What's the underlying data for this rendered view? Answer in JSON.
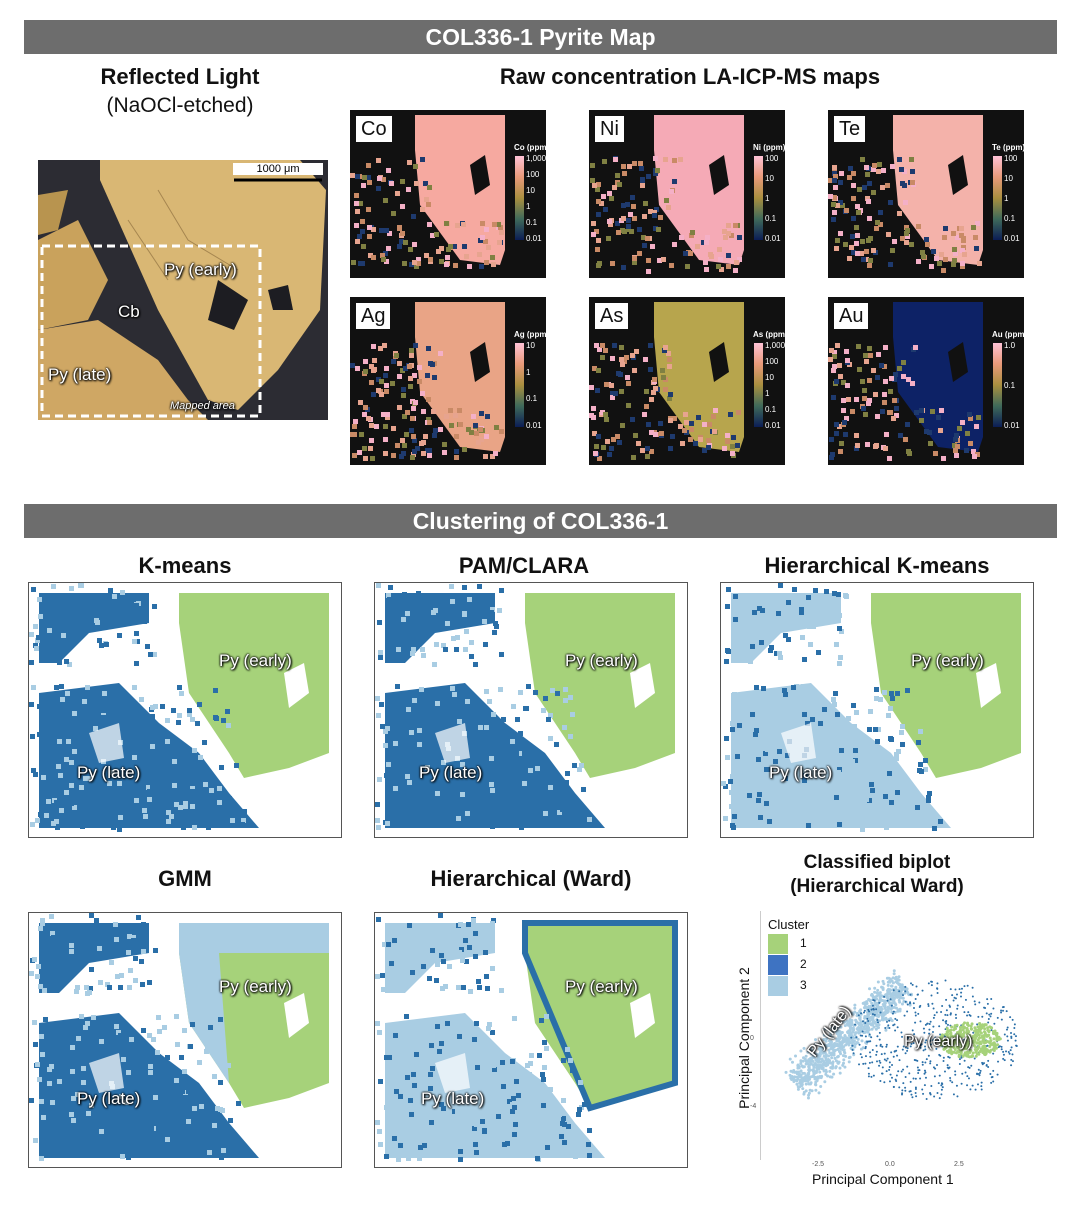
{
  "banners": {
    "top": "COL336-1 Pyrite Map",
    "bottom": "Clustering of COL336-1"
  },
  "reflected": {
    "title": "Reflected Light",
    "subtitle": "(NaOCl-etched)",
    "scale": "1000 μm",
    "label_early": "Py (early)",
    "label_cb": "Cb",
    "label_late": "Py (late)",
    "mapped": "Mapped area"
  },
  "raw_title": "Raw concentration LA-ICP-MS maps",
  "elements": [
    {
      "sym": "Co",
      "unit": "Co (ppm)",
      "ticks": [
        "1,000",
        "100",
        "10",
        "1",
        "0.1",
        "0.01"
      ]
    },
    {
      "sym": "Ni",
      "unit": "Ni (ppm)",
      "ticks": [
        "100",
        "10",
        "1",
        "0.1",
        "0.01"
      ]
    },
    {
      "sym": "Te",
      "unit": "Te (ppm)",
      "ticks": [
        "100",
        "10",
        "1",
        "0.1",
        "0.01"
      ]
    },
    {
      "sym": "Ag",
      "unit": "Ag (ppm)",
      "ticks": [
        "10",
        "1",
        "0.1",
        "0.01"
      ]
    },
    {
      "sym": "As",
      "unit": "As (ppm)",
      "ticks": [
        "1,000",
        "100",
        "10",
        "1",
        "0.1",
        "0.01"
      ]
    },
    {
      "sym": "Au",
      "unit": "Au (ppm)",
      "ticks": [
        "1.0",
        "0.1",
        "0.01"
      ]
    }
  ],
  "clusters": [
    {
      "title": "K-means",
      "early": "Py (early)",
      "late": "Py (late)"
    },
    {
      "title": "PAM/CLARA",
      "early": "Py (early)",
      "late": "Py (late)"
    },
    {
      "title": "Hierarchical K-means",
      "early": "Py (early)",
      "late": "Py (late)"
    },
    {
      "title": "GMM",
      "early": "Py (early)",
      "late": "Py (late)"
    },
    {
      "title": "Hierarchical (Ward)",
      "early": "Py (early)",
      "late": "Py (late)"
    }
  ],
  "biplot": {
    "title1": "Classified biplot",
    "title2": "(Hierarchical Ward)",
    "legend_title": "Cluster",
    "legend": [
      "1",
      "2",
      "3"
    ],
    "xlabel": "Principal Component 1",
    "ylabel": "Principal Component 2",
    "xticks": [
      "-2.5",
      "0.0",
      "2.5"
    ],
    "yticks": [
      "0",
      "-4"
    ],
    "early": "Py (early)",
    "late": "Py (late)"
  },
  "colors": {
    "green": "#a6d27a",
    "dark_blue": "#2a6fa8",
    "light_blue": "#a9cde3",
    "banner": "#6d6d6d"
  }
}
